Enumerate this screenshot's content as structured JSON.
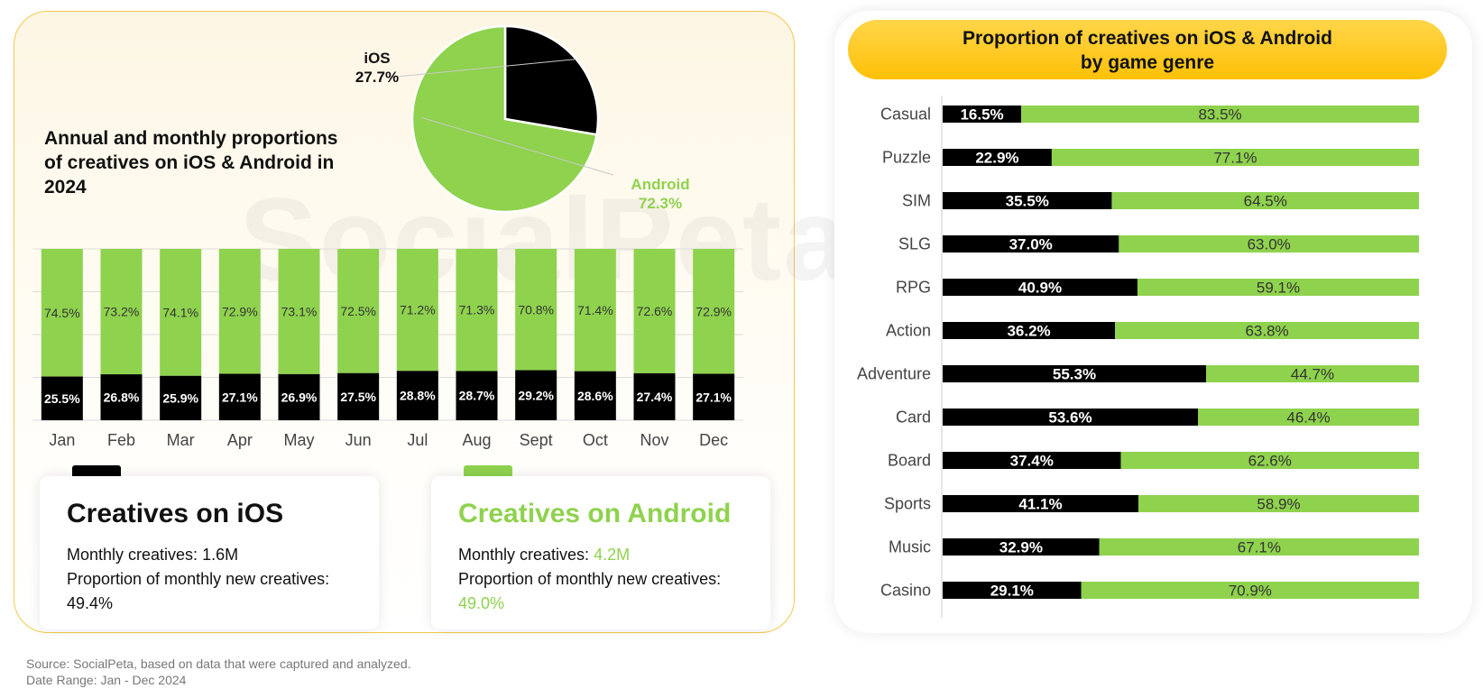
{
  "left_title": "Annual and monthly proportions of creatives on iOS & Android in 2024",
  "watermark": "SocialPeta",
  "pie": {
    "ios_label": "iOS",
    "ios_value": "27.7%",
    "android_label": "Android",
    "android_value": "72.3%"
  },
  "cards": {
    "ios": {
      "title": "Creatives on iOS",
      "monthly_label": "Monthly creatives: ",
      "monthly_value": "1.6M",
      "proportion_label": "Proportion of monthly new creatives:",
      "proportion_value": "49.4%"
    },
    "android": {
      "title": "Creatives on Android",
      "monthly_label": "Monthly creatives: ",
      "monthly_value": "4.2M",
      "proportion_label": "Proportion of monthly new creatives:",
      "proportion_value": "49.0%"
    }
  },
  "right_title_line1": "Proportion of creatives on iOS & Android",
  "right_title_line2": "by game genre",
  "source_line1": "Source: SocialPeta, based on data that were captured and analyzed.",
  "source_line2": "Date Range: Jan - Dec 2024",
  "colors": {
    "ios": "#000000",
    "android": "#8fd24e",
    "accent": "#ffc107"
  },
  "chart_data": [
    {
      "type": "pie",
      "labels": [
        "iOS",
        "Android"
      ],
      "values": [
        27.7,
        72.3
      ]
    },
    {
      "type": "bar",
      "stacked": true,
      "orientation": "vertical",
      "categories": [
        "Jan",
        "Feb",
        "Mar",
        "Apr",
        "May",
        "Jun",
        "Jul",
        "Aug",
        "Sept",
        "Oct",
        "Nov",
        "Dec"
      ],
      "series": [
        {
          "values": [
            25.5,
            26.8,
            25.9,
            27.1,
            26.9,
            27.5,
            28.8,
            28.7,
            29.2,
            28.6,
            27.4,
            27.1
          ]
        },
        {
          "values": [
            74.5,
            73.2,
            74.1,
            72.9,
            73.1,
            72.5,
            71.2,
            71.3,
            70.8,
            71.4,
            72.6,
            72.9
          ]
        }
      ],
      "ylim": [
        0,
        100
      ],
      "grid": true
    },
    {
      "type": "bar",
      "stacked": true,
      "orientation": "horizontal",
      "title": "Proportion of creatives on iOS & Android by game genre",
      "categories": [
        "Casual",
        "Puzzle",
        "SIM",
        "SLG",
        "RPG",
        "Action",
        "Adventure",
        "Card",
        "Board",
        "Sports",
        "Music",
        "Casino"
      ],
      "series": [
        {
          "values": [
            16.5,
            22.9,
            35.5,
            37.0,
            40.9,
            36.2,
            55.3,
            53.6,
            37.4,
            41.1,
            32.9,
            29.1
          ]
        },
        {
          "values": [
            83.5,
            77.1,
            64.5,
            63.0,
            59.1,
            63.8,
            44.7,
            46.4,
            62.6,
            58.9,
            67.1,
            70.9
          ]
        }
      ],
      "xlim": [
        0,
        100
      ]
    }
  ]
}
